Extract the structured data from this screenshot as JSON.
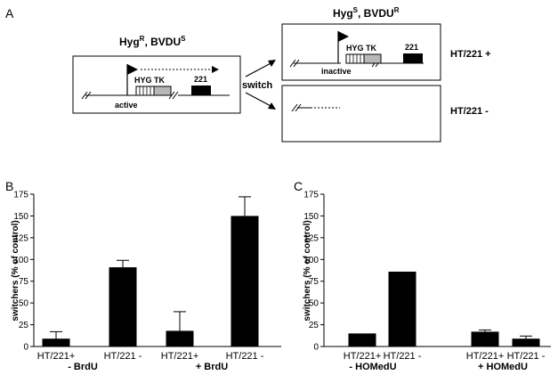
{
  "panel_a": {
    "letter": "A",
    "left_header": "Hyg",
    "left_header_sup1": "R",
    "left_header_mid": ", BVDU",
    "left_header_sup2": "S",
    "right_header": "Hyg",
    "right_header_sup1": "S",
    "right_header_mid": ", BVDU",
    "right_header_sup2": "R",
    "gene_label": "HYG TK",
    "locus_label": "221",
    "active_label": "active",
    "inactive_label": "inactive",
    "switch_label": "switch",
    "outcome_plus": "HT/221 +",
    "outcome_minus": "HT/221 -"
  },
  "panel_b": {
    "letter": "B",
    "group_labels": [
      "- BrdU",
      "+ BrdU"
    ]
  },
  "panel_c": {
    "letter": "C",
    "group_labels": [
      "- HOMedU",
      "+ HOMedU"
    ]
  },
  "chart_data": [
    {
      "type": "bar",
      "panel": "B",
      "title": "",
      "xlabel": "",
      "ylabel": "switchers (% of control)",
      "ylim": [
        0,
        175
      ],
      "yticks": [
        0,
        25,
        50,
        75,
        100,
        125,
        150,
        175
      ],
      "categories": [
        "HT/221+",
        "HT/221 -",
        "HT/221+",
        "HT/221 -"
      ],
      "groups": [
        "- BrdU",
        "- BrdU",
        "+ BrdU",
        "+ BrdU"
      ],
      "values": [
        9,
        91,
        18,
        150
      ],
      "errors": [
        8,
        8,
        22,
        22
      ],
      "grid": false,
      "color": "#000000"
    },
    {
      "type": "bar",
      "panel": "C",
      "title": "",
      "xlabel": "",
      "ylabel": "switchers (% of control)",
      "ylim": [
        0,
        175
      ],
      "yticks": [
        0,
        25,
        50,
        75,
        100,
        125,
        150,
        175
      ],
      "categories": [
        "HT/221+",
        "HT/221 -",
        "HT/221+",
        "HT/221 -"
      ],
      "groups": [
        "- HOMedU",
        "- HOMedU",
        "+ HOMedU",
        "+ HOMedU"
      ],
      "values": [
        15,
        86,
        17,
        9
      ],
      "errors": [
        0,
        0,
        2,
        3
      ],
      "grid": false,
      "color": "#000000"
    }
  ]
}
